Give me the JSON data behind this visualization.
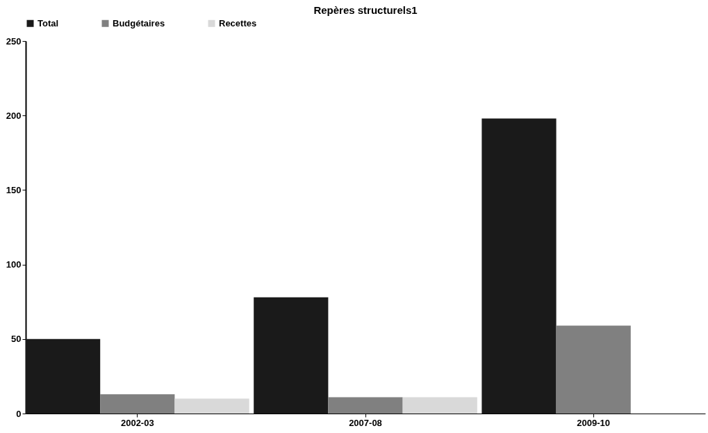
{
  "chart_data": {
    "type": "bar",
    "title": "Repères structurels1",
    "categories": [
      "2002-03",
      "2007-08",
      "2009-10"
    ],
    "series": [
      {
        "name": "Total",
        "color": "#1a1a1a",
        "values": [
          50,
          78,
          198
        ]
      },
      {
        "name": "Budgétaires",
        "color": "#808080",
        "values": [
          13,
          11,
          59
        ]
      },
      {
        "name": "Recettes",
        "color": "#d9d9d9",
        "values": [
          10,
          11,
          null
        ]
      }
    ],
    "ylim": [
      0,
      250
    ],
    "yticks": [
      0,
      50,
      100,
      150,
      200,
      250
    ],
    "grid": false,
    "legend": "top"
  }
}
